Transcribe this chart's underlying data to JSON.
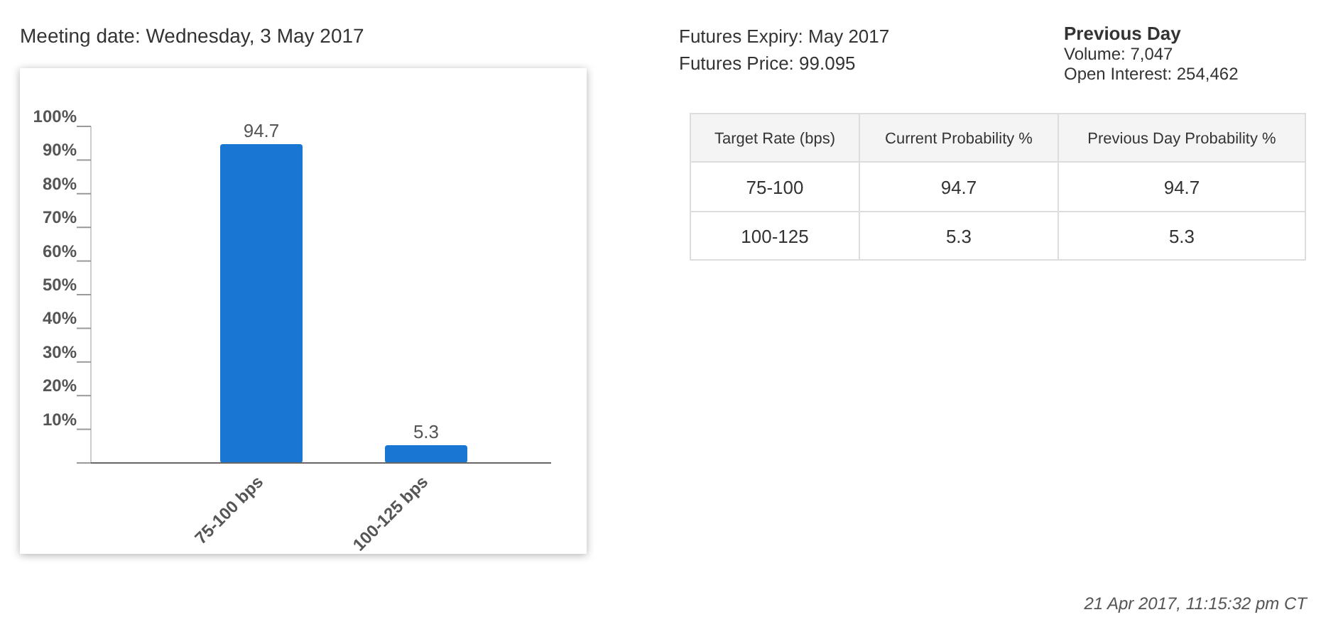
{
  "chart_data": [
    {
      "type": "bar",
      "title": "Meeting date: Wednesday, 3 May 2017",
      "categories": [
        "75-100 bps",
        "100-125 bps"
      ],
      "values": [
        94.7,
        5.3
      ],
      "color": "#1976d2",
      "data_labels": true,
      "ylim": [
        0,
        100
      ],
      "yticks": [
        {
          "value": 0,
          "label": null
        },
        {
          "value": 10,
          "label": "10%"
        },
        {
          "value": 20,
          "label": "20%"
        },
        {
          "value": 30,
          "label": "30%"
        },
        {
          "value": 40,
          "label": "40%"
        },
        {
          "value": 50,
          "label": "50%"
        },
        {
          "value": 60,
          "label": "60%"
        },
        {
          "value": 70,
          "label": "70%"
        },
        {
          "value": 80,
          "label": "80%"
        },
        {
          "value": 90,
          "label": "90%"
        },
        {
          "value": 100,
          "label": "100%"
        }
      ],
      "grid": false
    },
    {
      "type": "other",
      "data_labels": true,
      "xlabel": "Target Rate (bps)",
      "categories": [
        "75-100",
        "100-125"
      ],
      "series": [
        {
          "name": "Current Probability %",
          "values": [
            94.7,
            5.3
          ]
        },
        {
          "name": "Previous Day Probability %",
          "values": [
            94.7,
            5.3
          ]
        }
      ],
      "annotations": [
        "Futures Expiry: May 2017",
        "Futures Price: 99.095",
        "Previous Day",
        "Volume: 7,047",
        "Open Interest: 254,462",
        "21 Apr 2017, 11:15:32 pm CT"
      ]
    }
  ]
}
